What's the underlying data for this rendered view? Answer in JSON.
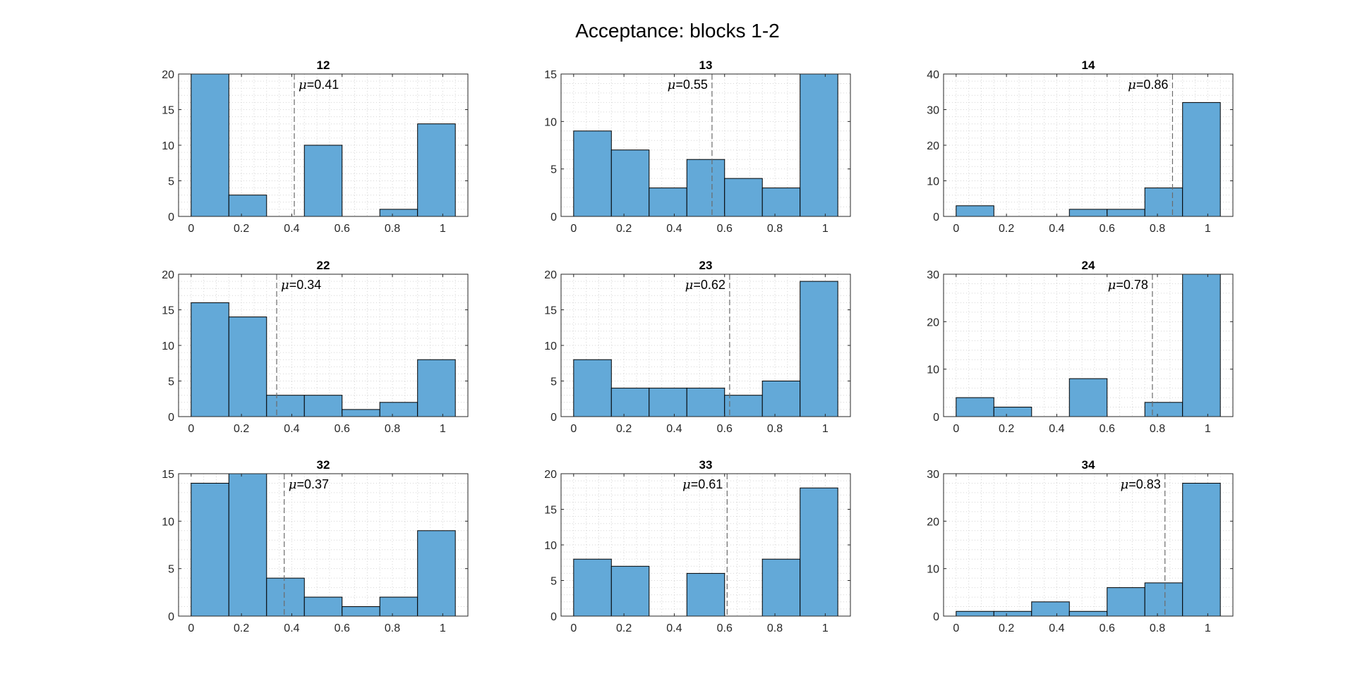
{
  "figure": {
    "title": "Acceptance: blocks 1-2"
  },
  "colors": {
    "bar_fill": "#63a9d8",
    "bar_edge": "#000000",
    "grid": "#d6d6d6",
    "mean_line": "#6b6b6b",
    "axis": "#262626"
  },
  "chart_data": [
    {
      "type": "bar",
      "title": "12",
      "bins": [
        0.075,
        0.225,
        0.375,
        0.525,
        0.675,
        0.825,
        0.975
      ],
      "values": [
        20,
        3,
        0,
        10,
        0,
        1,
        13
      ],
      "xlim": [
        -0.05,
        1.1
      ],
      "ylim": [
        0,
        20
      ],
      "yticks": [
        0,
        5,
        10,
        15,
        20
      ],
      "xticks": [
        0,
        0.2,
        0.4,
        0.6,
        0.8,
        1
      ],
      "mean": 0.41,
      "mean_label": "=0.41",
      "mean_symbol": "μ",
      "grid": true
    },
    {
      "type": "bar",
      "title": "13",
      "bins": [
        0.075,
        0.225,
        0.375,
        0.525,
        0.675,
        0.825,
        0.975
      ],
      "values": [
        9,
        7,
        3,
        6,
        4,
        3,
        15
      ],
      "xlim": [
        -0.05,
        1.1
      ],
      "ylim": [
        0,
        15
      ],
      "yticks": [
        0,
        5,
        10,
        15
      ],
      "xticks": [
        0,
        0.2,
        0.4,
        0.6,
        0.8,
        1
      ],
      "mean": 0.55,
      "mean_label": "=0.55",
      "mean_symbol": "μ",
      "grid": true
    },
    {
      "type": "bar",
      "title": "14",
      "bins": [
        0.075,
        0.225,
        0.375,
        0.525,
        0.675,
        0.825,
        0.975
      ],
      "values": [
        3,
        0,
        0,
        2,
        2,
        8,
        32
      ],
      "xlim": [
        -0.05,
        1.1
      ],
      "ylim": [
        0,
        40
      ],
      "yticks": [
        0,
        10,
        20,
        30,
        40
      ],
      "xticks": [
        0,
        0.2,
        0.4,
        0.6,
        0.8,
        1
      ],
      "mean": 0.86,
      "mean_label": "=0.86",
      "mean_symbol": "μ",
      "grid": true
    },
    {
      "type": "bar",
      "title": "22",
      "bins": [
        0.075,
        0.225,
        0.375,
        0.525,
        0.675,
        0.825,
        0.975
      ],
      "values": [
        16,
        14,
        3,
        3,
        1,
        2,
        8
      ],
      "xlim": [
        -0.05,
        1.1
      ],
      "ylim": [
        0,
        20
      ],
      "yticks": [
        0,
        5,
        10,
        15,
        20
      ],
      "xticks": [
        0,
        0.2,
        0.4,
        0.6,
        0.8,
        1
      ],
      "mean": 0.34,
      "mean_label": "=0.34",
      "mean_symbol": "μ",
      "grid": true
    },
    {
      "type": "bar",
      "title": "23",
      "bins": [
        0.075,
        0.225,
        0.375,
        0.525,
        0.675,
        0.825,
        0.975
      ],
      "values": [
        8,
        4,
        4,
        4,
        3,
        5,
        19
      ],
      "xlim": [
        -0.05,
        1.1
      ],
      "ylim": [
        0,
        20
      ],
      "yticks": [
        0,
        5,
        10,
        15,
        20
      ],
      "xticks": [
        0,
        0.2,
        0.4,
        0.6,
        0.8,
        1
      ],
      "mean": 0.62,
      "mean_label": "=0.62",
      "mean_symbol": "μ",
      "grid": true
    },
    {
      "type": "bar",
      "title": "24",
      "bins": [
        0.075,
        0.225,
        0.375,
        0.525,
        0.675,
        0.825,
        0.975
      ],
      "values": [
        4,
        2,
        0,
        8,
        0,
        3,
        30
      ],
      "xlim": [
        -0.05,
        1.1
      ],
      "ylim": [
        0,
        30
      ],
      "yticks": [
        0,
        10,
        20,
        30
      ],
      "xticks": [
        0,
        0.2,
        0.4,
        0.6,
        0.8,
        1
      ],
      "mean": 0.78,
      "mean_label": "=0.78",
      "mean_symbol": "μ",
      "grid": true
    },
    {
      "type": "bar",
      "title": "32",
      "bins": [
        0.075,
        0.225,
        0.375,
        0.525,
        0.675,
        0.825,
        0.975
      ],
      "values": [
        14,
        15,
        4,
        2,
        1,
        2,
        9
      ],
      "xlim": [
        -0.05,
        1.1
      ],
      "ylim": [
        0,
        15
      ],
      "yticks": [
        0,
        5,
        10,
        15
      ],
      "xticks": [
        0,
        0.2,
        0.4,
        0.6,
        0.8,
        1
      ],
      "mean": 0.37,
      "mean_label": "=0.37",
      "mean_symbol": "μ",
      "grid": true
    },
    {
      "type": "bar",
      "title": "33",
      "bins": [
        0.075,
        0.225,
        0.375,
        0.525,
        0.675,
        0.825,
        0.975
      ],
      "values": [
        8,
        7,
        0,
        6,
        0,
        8,
        18
      ],
      "xlim": [
        -0.05,
        1.1
      ],
      "ylim": [
        0,
        20
      ],
      "yticks": [
        0,
        5,
        10,
        15,
        20
      ],
      "xticks": [
        0,
        0.2,
        0.4,
        0.6,
        0.8,
        1
      ],
      "mean": 0.61,
      "mean_label": "=0.61",
      "mean_symbol": "μ",
      "grid": true
    },
    {
      "type": "bar",
      "title": "34",
      "bins": [
        0.075,
        0.225,
        0.375,
        0.525,
        0.675,
        0.825,
        0.975
      ],
      "values": [
        1,
        1,
        3,
        1,
        6,
        7,
        28
      ],
      "xlim": [
        -0.05,
        1.1
      ],
      "ylim": [
        0,
        30
      ],
      "yticks": [
        0,
        10,
        20,
        30
      ],
      "xticks": [
        0,
        0.2,
        0.4,
        0.6,
        0.8,
        1
      ],
      "mean": 0.83,
      "mean_label": "=0.83",
      "mean_symbol": "μ",
      "grid": true
    }
  ]
}
